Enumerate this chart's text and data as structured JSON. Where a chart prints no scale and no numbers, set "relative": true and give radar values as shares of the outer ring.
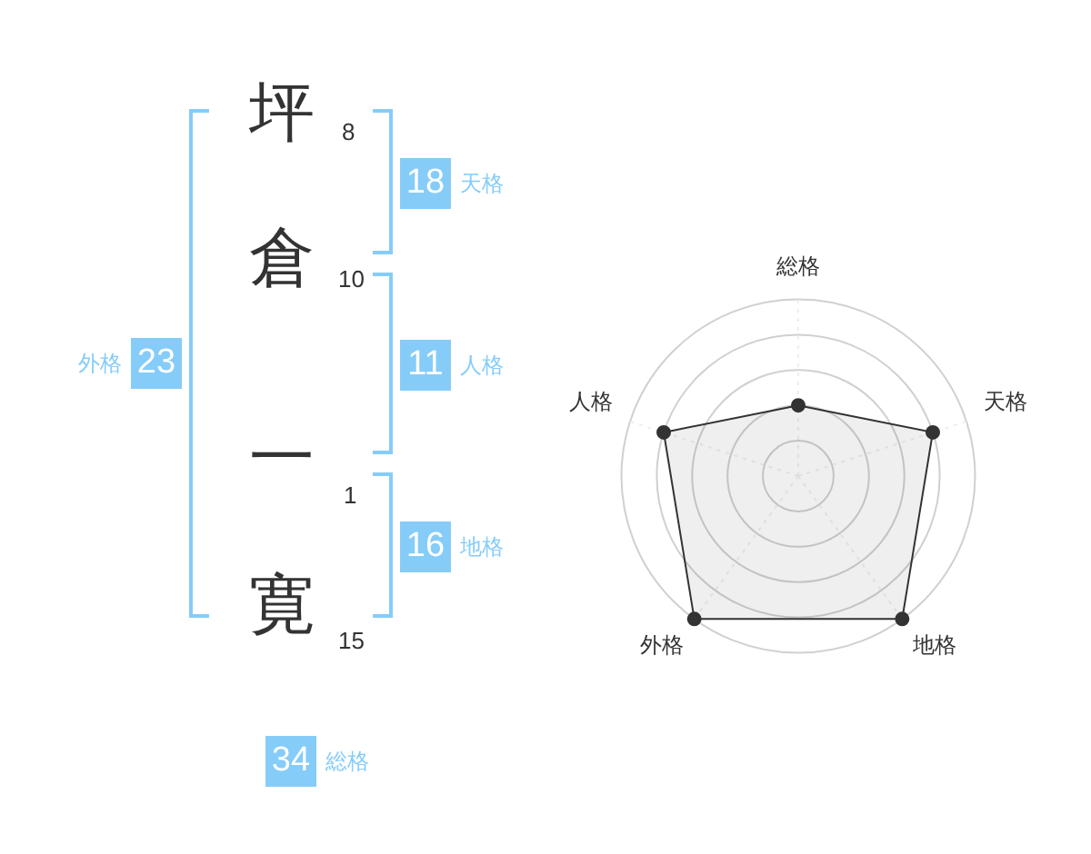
{
  "chart_data": [
    {
      "type": "other",
      "categories": [
        "坪",
        "倉",
        "一",
        "寛"
      ],
      "values": [
        8,
        10,
        1,
        15
      ],
      "data_labels": true
    },
    {
      "type": "other",
      "categories": [
        "天格",
        "人格",
        "地格",
        "外格",
        "総格"
      ],
      "values": [
        18,
        11,
        16,
        23,
        34
      ],
      "color": "#86ccf9",
      "data_labels": true
    },
    {
      "type": "radar",
      "categories": [
        "総格",
        "天格",
        "地格",
        "外格",
        "人格"
      ],
      "relative": true,
      "grid": true,
      "legend": false,
      "marker": "circle",
      "series": [
        {
          "color": "#333333",
          "values": [
            0.4,
            0.8,
            1,
            1,
            0.8
          ]
        }
      ]
    }
  ]
}
